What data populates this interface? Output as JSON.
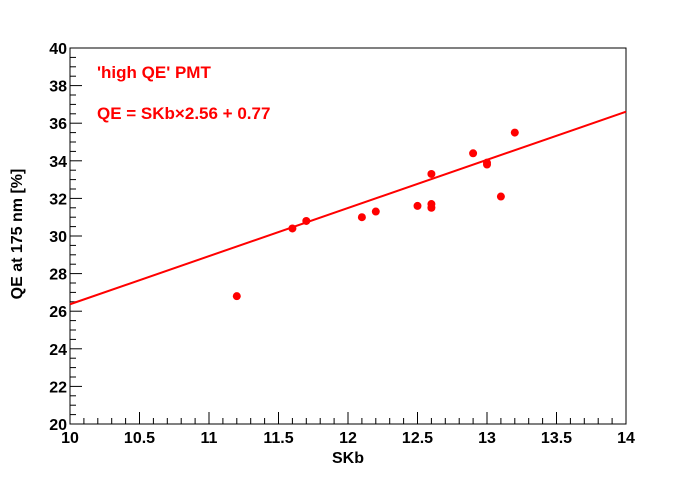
{
  "chart_data": {
    "type": "scatter",
    "title": "",
    "xlabel": "SKb",
    "ylabel": "QE at 175 nm [%]",
    "xlim": [
      10,
      14
    ],
    "ylim": [
      20,
      40
    ],
    "x_ticks": [
      "10",
      "10.5",
      "11",
      "11.5",
      "12",
      "12.5",
      "13",
      "13.5",
      "14"
    ],
    "y_ticks": [
      "20",
      "22",
      "24",
      "26",
      "28",
      "30",
      "32",
      "34",
      "36",
      "38",
      "40"
    ],
    "grid": false,
    "annotations": [
      "'high QE' PMT",
      "QE = SKb×2.56 + 0.77"
    ],
    "fit": {
      "slope": 2.56,
      "intercept": 0.77,
      "x_range": [
        10,
        14
      ]
    },
    "series": [
      {
        "points": [
          {
            "x": 11.2,
            "y": 26.8
          },
          {
            "x": 11.6,
            "y": 30.4
          },
          {
            "x": 11.7,
            "y": 30.8
          },
          {
            "x": 12.1,
            "y": 31.0
          },
          {
            "x": 12.2,
            "y": 31.3
          },
          {
            "x": 12.5,
            "y": 31.6
          },
          {
            "x": 12.6,
            "y": 31.5
          },
          {
            "x": 12.6,
            "y": 31.7
          },
          {
            "x": 12.6,
            "y": 33.3
          },
          {
            "x": 12.9,
            "y": 34.4
          },
          {
            "x": 13.0,
            "y": 33.8
          },
          {
            "x": 13.0,
            "y": 33.9
          },
          {
            "x": 13.1,
            "y": 32.1
          },
          {
            "x": 13.2,
            "y": 35.5
          }
        ]
      }
    ]
  },
  "colors": {
    "data": "#ff0000",
    "axis": "#000000",
    "background": "#ffffff"
  }
}
